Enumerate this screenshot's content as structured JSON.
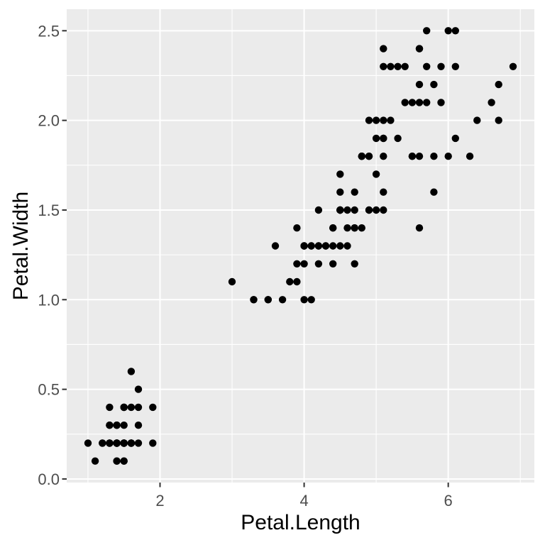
{
  "figure": {
    "background": "#FFFFFF"
  },
  "chart_data": {
    "type": "scatter",
    "title": "",
    "xlabel": "Petal.Length",
    "ylabel": "Petal.Width",
    "xlim": [
      0.705,
      7.195
    ],
    "ylim": [
      -0.02,
      2.62
    ],
    "x_ticks": {
      "values": [
        2,
        4,
        6
      ],
      "labels": [
        "2",
        "4",
        "6"
      ]
    },
    "y_ticks": {
      "values": [
        0,
        0.5,
        1,
        1.5,
        2,
        2.5
      ],
      "labels": [
        "0.0",
        "0.5",
        "1.0",
        "1.5",
        "2.0",
        "2.5"
      ]
    },
    "x_minor_breaks": [
      1,
      3,
      5,
      7
    ],
    "y_minor_breaks": [
      0.25,
      0.75,
      1.25,
      1.75,
      2.25
    ],
    "grid": "major-and-minor",
    "legend": "none",
    "theme": {
      "panel_bg": "#EBEBEB",
      "grid_color": "#FFFFFF",
      "point_color": "#000000",
      "tick_mark_color": "#333333",
      "tick_label_color": "#4D4D4D",
      "axis_title_color": "#000000"
    },
    "points": [
      [
        1.4,
        0.2
      ],
      [
        1.4,
        0.2
      ],
      [
        1.3,
        0.2
      ],
      [
        1.5,
        0.2
      ],
      [
        1.4,
        0.2
      ],
      [
        1.7,
        0.4
      ],
      [
        1.4,
        0.3
      ],
      [
        1.5,
        0.2
      ],
      [
        1.4,
        0.2
      ],
      [
        1.5,
        0.1
      ],
      [
        1.5,
        0.2
      ],
      [
        1.6,
        0.2
      ],
      [
        1.4,
        0.1
      ],
      [
        1.1,
        0.1
      ],
      [
        1.2,
        0.2
      ],
      [
        1.5,
        0.4
      ],
      [
        1.3,
        0.4
      ],
      [
        1.4,
        0.3
      ],
      [
        1.7,
        0.3
      ],
      [
        1.5,
        0.3
      ],
      [
        1.7,
        0.2
      ],
      [
        1.5,
        0.4
      ],
      [
        1.0,
        0.2
      ],
      [
        1.7,
        0.5
      ],
      [
        1.9,
        0.2
      ],
      [
        1.6,
        0.2
      ],
      [
        1.6,
        0.4
      ],
      [
        1.5,
        0.2
      ],
      [
        1.4,
        0.2
      ],
      [
        1.6,
        0.2
      ],
      [
        1.6,
        0.2
      ],
      [
        1.5,
        0.4
      ],
      [
        1.5,
        0.1
      ],
      [
        1.4,
        0.2
      ],
      [
        1.5,
        0.2
      ],
      [
        1.2,
        0.2
      ],
      [
        1.3,
        0.2
      ],
      [
        1.4,
        0.1
      ],
      [
        1.3,
        0.2
      ],
      [
        1.5,
        0.2
      ],
      [
        1.3,
        0.3
      ],
      [
        1.3,
        0.3
      ],
      [
        1.3,
        0.2
      ],
      [
        1.6,
        0.6
      ],
      [
        1.9,
        0.4
      ],
      [
        1.4,
        0.3
      ],
      [
        1.6,
        0.2
      ],
      [
        1.4,
        0.2
      ],
      [
        1.5,
        0.2
      ],
      [
        1.4,
        0.2
      ],
      [
        4.7,
        1.4
      ],
      [
        4.5,
        1.5
      ],
      [
        4.9,
        1.5
      ],
      [
        4.0,
        1.3
      ],
      [
        4.6,
        1.5
      ],
      [
        4.5,
        1.3
      ],
      [
        4.7,
        1.6
      ],
      [
        3.3,
        1.0
      ],
      [
        4.6,
        1.3
      ],
      [
        3.9,
        1.4
      ],
      [
        3.5,
        1.0
      ],
      [
        4.2,
        1.5
      ],
      [
        4.0,
        1.0
      ],
      [
        4.7,
        1.4
      ],
      [
        3.6,
        1.3
      ],
      [
        4.4,
        1.4
      ],
      [
        4.5,
        1.5
      ],
      [
        4.1,
        1.0
      ],
      [
        4.5,
        1.5
      ],
      [
        3.9,
        1.1
      ],
      [
        4.8,
        1.8
      ],
      [
        4.0,
        1.3
      ],
      [
        4.9,
        1.5
      ],
      [
        4.7,
        1.2
      ],
      [
        4.3,
        1.3
      ],
      [
        4.4,
        1.4
      ],
      [
        4.8,
        1.4
      ],
      [
        5.0,
        1.7
      ],
      [
        4.5,
        1.5
      ],
      [
        3.5,
        1.0
      ],
      [
        3.8,
        1.1
      ],
      [
        3.7,
        1.0
      ],
      [
        3.9,
        1.2
      ],
      [
        5.1,
        1.6
      ],
      [
        4.5,
        1.5
      ],
      [
        4.5,
        1.6
      ],
      [
        4.7,
        1.5
      ],
      [
        4.4,
        1.3
      ],
      [
        4.1,
        1.3
      ],
      [
        4.0,
        1.3
      ],
      [
        4.4,
        1.2
      ],
      [
        4.6,
        1.4
      ],
      [
        4.0,
        1.2
      ],
      [
        3.3,
        1.0
      ],
      [
        4.2,
        1.3
      ],
      [
        4.2,
        1.2
      ],
      [
        4.2,
        1.3
      ],
      [
        4.3,
        1.3
      ],
      [
        3.0,
        1.1
      ],
      [
        4.1,
        1.3
      ],
      [
        6.0,
        2.5
      ],
      [
        5.1,
        1.9
      ],
      [
        5.9,
        2.1
      ],
      [
        5.6,
        1.8
      ],
      [
        5.8,
        2.2
      ],
      [
        6.6,
        2.1
      ],
      [
        4.5,
        1.7
      ],
      [
        6.3,
        1.8
      ],
      [
        5.8,
        1.8
      ],
      [
        6.1,
        2.5
      ],
      [
        5.1,
        2.0
      ],
      [
        5.3,
        1.9
      ],
      [
        5.5,
        2.1
      ],
      [
        5.0,
        2.0
      ],
      [
        5.1,
        2.4
      ],
      [
        5.3,
        2.3
      ],
      [
        5.5,
        1.8
      ],
      [
        6.7,
        2.2
      ],
      [
        6.9,
        2.3
      ],
      [
        5.0,
        1.5
      ],
      [
        5.7,
        2.3
      ],
      [
        4.9,
        2.0
      ],
      [
        6.7,
        2.0
      ],
      [
        4.9,
        1.8
      ],
      [
        5.7,
        2.1
      ],
      [
        6.0,
        1.8
      ],
      [
        4.8,
        1.8
      ],
      [
        4.9,
        1.8
      ],
      [
        5.6,
        2.1
      ],
      [
        5.8,
        1.6
      ],
      [
        6.1,
        1.9
      ],
      [
        6.4,
        2.0
      ],
      [
        5.6,
        2.2
      ],
      [
        5.1,
        1.5
      ],
      [
        5.6,
        1.4
      ],
      [
        6.1,
        2.3
      ],
      [
        5.6,
        2.4
      ],
      [
        5.5,
        1.8
      ],
      [
        4.8,
        1.8
      ],
      [
        5.4,
        2.1
      ],
      [
        5.6,
        2.4
      ],
      [
        5.1,
        2.3
      ],
      [
        5.1,
        1.9
      ],
      [
        5.9,
        2.3
      ],
      [
        5.7,
        2.5
      ],
      [
        5.2,
        2.3
      ],
      [
        5.0,
        1.9
      ],
      [
        5.2,
        2.0
      ],
      [
        5.4,
        2.3
      ],
      [
        5.1,
        1.8
      ]
    ]
  }
}
